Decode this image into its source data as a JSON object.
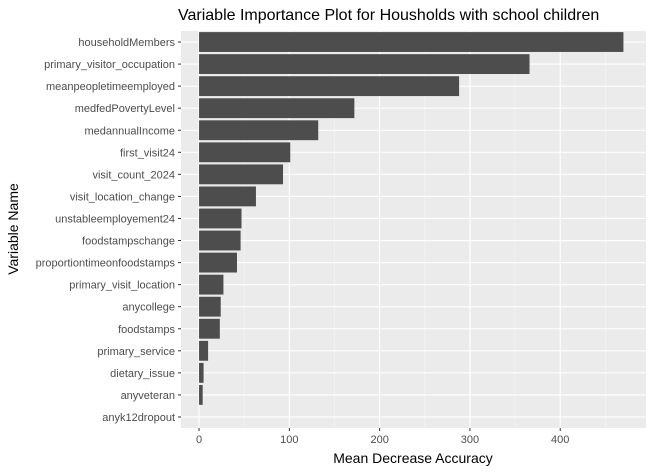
{
  "chart_data": {
    "type": "bar",
    "orientation": "horizontal",
    "title": "Variable Importance Plot for Housholds with school children",
    "xlabel": "Mean Decrease Accuracy",
    "ylabel": "Variable Name",
    "xlim": [
      -20,
      495
    ],
    "xticks": [
      0,
      100,
      200,
      300,
      400
    ],
    "grid": true,
    "legend": "none",
    "colors": {
      "bar": "#4d4d4d",
      "panel": "#ebebeb",
      "grid_major": "#ffffff",
      "grid_minor": "#f5f5f5"
    },
    "categories": [
      "householdMembers",
      "primary_visitor_occupation",
      "meanpeopletimeemployed",
      "medfedPovertyLevel",
      "medannualIncome",
      "first_visit24",
      "visit_count_2024",
      "visit_location_change",
      "unstableemployement24",
      "foodstampschange",
      "proportiontimeonfoodstamps",
      "primary_visit_location",
      "anycollege",
      "foodstamps",
      "primary_service",
      "dietary_issue",
      "anyveteran",
      "anyk12dropout"
    ],
    "values": [
      470,
      366,
      288,
      172,
      132,
      101,
      93,
      63,
      47,
      46,
      42,
      27,
      24,
      23,
      10,
      5,
      4,
      0
    ]
  }
}
